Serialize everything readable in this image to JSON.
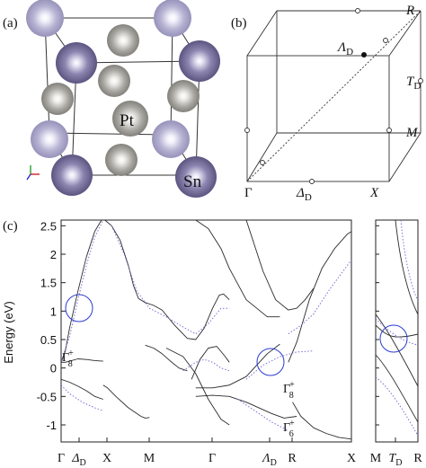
{
  "figure": {
    "panel_a": {
      "label": "(a)",
      "atom_pt": "Pt",
      "atom_sn": "Sn",
      "colors": {
        "sn": "#8c85b0",
        "sn_corner": "#b7b3d3",
        "pt": "#a9a7a2",
        "pt_dark": "#8d8b87"
      }
    },
    "panel_b": {
      "label": "(b)",
      "points": {
        "R": "R",
        "lambda_main": "Λ",
        "lambda_sub": "D",
        "T_main": "T",
        "T_sub": "D",
        "M": "M",
        "Gamma": "Γ",
        "delta_main": "Δ",
        "delta_sub": "D",
        "X": "X"
      }
    },
    "panel_c": {
      "label": "(c)",
      "ylabel": "Energy (eV)",
      "ytick_labels": [
        "2.5",
        "2",
        "1.5",
        "1",
        "0.5",
        "0",
        "-0.5",
        "-1"
      ],
      "xtick_left": [
        {
          "main": "Γ",
          "sub": ""
        },
        {
          "main": "Δ",
          "sub": "D"
        },
        {
          "main": "X",
          "sub": ""
        },
        {
          "main": "M",
          "sub": ""
        },
        {
          "main": "Γ",
          "sub": ""
        },
        {
          "main": "Λ",
          "sub": "D"
        },
        {
          "main": "R",
          "sub": ""
        },
        {
          "main": "X",
          "sub": ""
        }
      ],
      "xtick_right": [
        {
          "main": "M",
          "sub": ""
        },
        {
          "main": "T",
          "sub": "D"
        },
        {
          "main": "R",
          "sub": ""
        }
      ],
      "annotations": {
        "gamma8_left": {
          "main": "Γ",
          "sub": "8",
          "sup": "+"
        },
        "gamma8_mid": {
          "main": "Γ",
          "sub": "8",
          "sup": "+"
        },
        "gamma6_mid": {
          "main": "Γ",
          "sub": "6",
          "sup": "+"
        }
      },
      "colors": {
        "band_solid": "#2a2a2a",
        "band_dotted": "#7b6fd6",
        "circle": "#2a3bd0"
      }
    }
  },
  "chart_data": {
    "type": "line",
    "ylabel": "Energy (eV)",
    "ylim": [
      -1.3,
      2.6
    ],
    "yticks": [
      -1,
      -0.5,
      0,
      0.5,
      1,
      1.5,
      2,
      2.5
    ],
    "kpath": [
      "Γ",
      "Δ_D",
      "X",
      "M",
      "Γ",
      "Λ_D",
      "R",
      "X",
      "M",
      "T_D",
      "R"
    ],
    "series": [
      {
        "style": "solid",
        "segments": [
          {
            "x": [
              0,
              0.05,
              0.1,
              0.2,
              0.3,
              0.4,
              0.48
            ],
            "y": [
              0.1,
              0.3,
              0.7,
              1.35,
              1.95,
              2.4,
              2.6
            ]
          },
          {
            "x": [
              0,
              0.05,
              0.1,
              0.2,
              0.3,
              0.4,
              0.5
            ],
            "y": [
              0.1,
              0.1,
              0.12,
              0.16,
              0.15,
              0.13,
              0.12
            ]
          },
          {
            "x": [
              0,
              0.1,
              0.2,
              0.3,
              0.4,
              0.5
            ],
            "y": [
              -0.2,
              -0.25,
              -0.32,
              -0.4,
              -0.5,
              -0.55
            ]
          },
          {
            "x": [
              0.5,
              0.55,
              0.65,
              0.8,
              0.95,
              1.0,
              1.05
            ],
            "y": [
              -0.3,
              -0.35,
              -0.5,
              -0.7,
              -0.85,
              -0.88,
              -0.87
            ]
          },
          {
            "x": [
              0.52,
              0.6,
              0.7,
              0.8,
              0.86,
              0.92,
              1.0,
              1.1,
              1.2,
              1.35,
              1.5,
              1.6,
              1.7,
              1.8,
              1.88,
              1.93,
              2.0
            ],
            "y": [
              2.6,
              2.5,
              2.25,
              1.8,
              1.45,
              1.22,
              1.15,
              1.1,
              1.02,
              0.75,
              0.52,
              0.5,
              0.7,
              1.05,
              1.28,
              1.3,
              1.2
            ]
          },
          {
            "x": [
              1.0,
              1.1,
              1.2,
              1.3,
              1.4,
              1.5
            ],
            "y": [
              0.4,
              0.35,
              0.25,
              0.12,
              0.0,
              -0.05
            ]
          },
          {
            "x": [
              1.25,
              1.45,
              1.6,
              1.75,
              1.9,
              2.0
            ],
            "y": [
              0.35,
              0.2,
              -0.1,
              -0.55,
              -0.9,
              -1.0
            ]
          },
          {
            "x": [
              1.55,
              1.65,
              1.75,
              1.85,
              1.95,
              2.0
            ],
            "y": [
              -0.2,
              0.15,
              0.35,
              0.38,
              0.2,
              0.1
            ]
          },
          {
            "x": [
              1.6,
              1.75,
              1.9,
              2.0,
              2.2,
              2.45,
              2.6
            ],
            "y": [
              2.6,
              2.45,
              2.1,
              1.75,
              1.2,
              0.9,
              0.9
            ]
          },
          {
            "x": [
              1.6,
              1.8,
              2.0,
              2.2,
              2.45,
              2.6
            ],
            "y": [
              -0.35,
              -0.35,
              -0.3,
              -0.15,
              0.25,
              0.42
            ]
          },
          {
            "x": [
              1.6,
              1.8,
              2.0,
              2.2,
              2.5,
              2.65,
              2.8
            ],
            "y": [
              -0.5,
              -0.48,
              -0.5,
              -0.6,
              -0.8,
              -0.88,
              -0.85
            ]
          },
          {
            "x": [
              2.2,
              2.4,
              2.55,
              2.7,
              2.8,
              2.9,
              3.0
            ],
            "y": [
              2.6,
              1.7,
              1.2,
              1.02,
              1.05,
              1.2,
              1.4
            ]
          },
          {
            "x": [
              2.7,
              2.8,
              2.95,
              3.1,
              3.25,
              3.4,
              3.45
            ],
            "y": [
              0.1,
              0.45,
              1.2,
              1.75,
              2.1,
              2.35,
              2.4
            ]
          },
          {
            "x": [
              2.75,
              2.85,
              3.0,
              3.15,
              3.3,
              3.45
            ],
            "y": [
              -0.6,
              -0.85,
              -1.05,
              -1.15,
              -1.22,
              -1.25
            ]
          }
        ]
      },
      {
        "style": "dotted",
        "segments": [
          {
            "x": [
              0,
              0.1,
              0.2,
              0.3,
              0.4,
              0.5
            ],
            "y": [
              0.12,
              0.55,
              1.2,
              1.8,
              2.3,
              2.6
            ]
          },
          {
            "x": [
              0,
              0.1,
              0.25,
              0.4,
              0.5
            ],
            "y": [
              -0.3,
              -0.45,
              -0.6,
              -0.7,
              -0.75
            ]
          },
          {
            "x": [
              0.6,
              0.75,
              0.9,
              1.05,
              1.25,
              1.45,
              1.6,
              1.75,
              1.9,
              2.0
            ],
            "y": [
              2.5,
              2.0,
              1.35,
              1.05,
              0.9,
              0.72,
              0.6,
              0.78,
              1.05,
              1.05
            ]
          },
          {
            "x": [
              1.45,
              1.6,
              1.7,
              1.8,
              1.9,
              2.0
            ],
            "y": [
              -0.05,
              0.1,
              0.15,
              0.1,
              0.0,
              -0.05
            ]
          },
          {
            "x": [
              2.2,
              2.4,
              2.6,
              2.8,
              3.0
            ],
            "y": [
              -0.2,
              0.05,
              0.2,
              0.28,
              0.3
            ]
          },
          {
            "x": [
              2.7,
              2.85,
              3.0,
              3.2,
              3.45
            ],
            "y": [
              0.6,
              0.75,
              0.95,
              1.4,
              1.9
            ]
          },
          {
            "x": [
              2.1,
              2.3,
              2.5,
              2.7
            ],
            "y": [
              -0.55,
              -0.75,
              -0.95,
              -1.1
            ]
          }
        ]
      }
    ]
  }
}
